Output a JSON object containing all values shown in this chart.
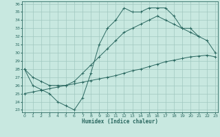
{
  "xlabel": "Humidex (Indice chaleur)",
  "bg_color": "#c8e8e0",
  "grid_color": "#a0c8c0",
  "line_color": "#2a6860",
  "xmin": 0,
  "xmax": 23,
  "ymin": 23,
  "ymax": 36,
  "line1_x": [
    0,
    1,
    2,
    3,
    4,
    5,
    6,
    7,
    8,
    9,
    10,
    11,
    12,
    13,
    14,
    15,
    16,
    17,
    18,
    19,
    20,
    21
  ],
  "line1_y": [
    28,
    26,
    25.5,
    25,
    24,
    23.5,
    23,
    24.5,
    27.5,
    31,
    33,
    34,
    35.5,
    35,
    35,
    35.5,
    35.5,
    35.5,
    34.5,
    33,
    32.5,
    32
  ],
  "line2_x": [
    0,
    1,
    2,
    3,
    4,
    5,
    6,
    7,
    8,
    9,
    10,
    11,
    12,
    13,
    14,
    15,
    16,
    17,
    18,
    19,
    20,
    21,
    22,
    23
  ],
  "line2_y": [
    28,
    27,
    26.5,
    26,
    26,
    26,
    26.5,
    27.5,
    28.5,
    29.5,
    30.5,
    31.5,
    32.5,
    33,
    33.5,
    34,
    34.5,
    34,
    33.5,
    33,
    33,
    32,
    31.5,
    30
  ],
  "line3_x": [
    0,
    1,
    2,
    3,
    4,
    5,
    6,
    7,
    8,
    9,
    10,
    11,
    12,
    13,
    14,
    15,
    16,
    17,
    18,
    19,
    20,
    21,
    22,
    23
  ],
  "line3_y": [
    25,
    25.2,
    25.4,
    25.6,
    25.8,
    26.0,
    26.2,
    26.4,
    26.6,
    26.8,
    27.0,
    27.2,
    27.5,
    27.8,
    28.0,
    28.3,
    28.6,
    28.9,
    29.1,
    29.3,
    29.5,
    29.6,
    29.7,
    29.5
  ],
  "marker": "+"
}
